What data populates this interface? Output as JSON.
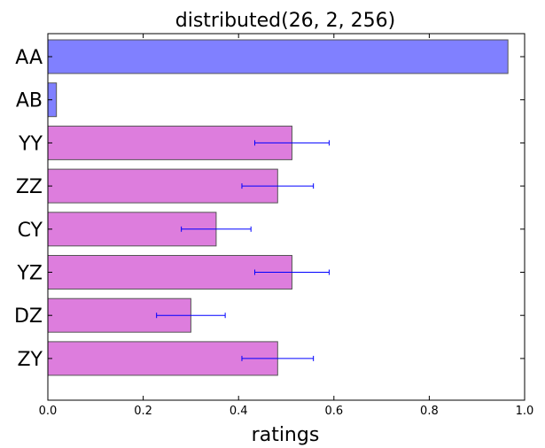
{
  "chart_data": {
    "type": "bar",
    "orientation": "horizontal",
    "title": "distributed(26, 2, 256)",
    "xlabel": "ratings",
    "ylabel": "",
    "xlim": [
      0.0,
      1.0
    ],
    "x_ticks": [
      "0.0",
      "0.2",
      "0.4",
      "0.6",
      "0.8",
      "1.0"
    ],
    "categories": [
      "AA",
      "AB",
      "YY",
      "ZZ",
      "CY",
      "YZ",
      "DZ",
      "ZY"
    ],
    "values": [
      0.965,
      0.018,
      0.512,
      0.482,
      0.353,
      0.512,
      0.3,
      0.482
    ],
    "errors": [
      null,
      null,
      0.078,
      0.075,
      0.073,
      0.078,
      0.072,
      0.075
    ],
    "bar_colors": [
      "#8080ff",
      "#8080ff",
      "#dd7ddd",
      "#dd7ddd",
      "#dd7ddd",
      "#dd7ddd",
      "#dd7ddd",
      "#dd7ddd"
    ],
    "bar_edge_color": "#555555",
    "errorbar_color": "#0000ff",
    "grid": false,
    "legend": "none"
  }
}
